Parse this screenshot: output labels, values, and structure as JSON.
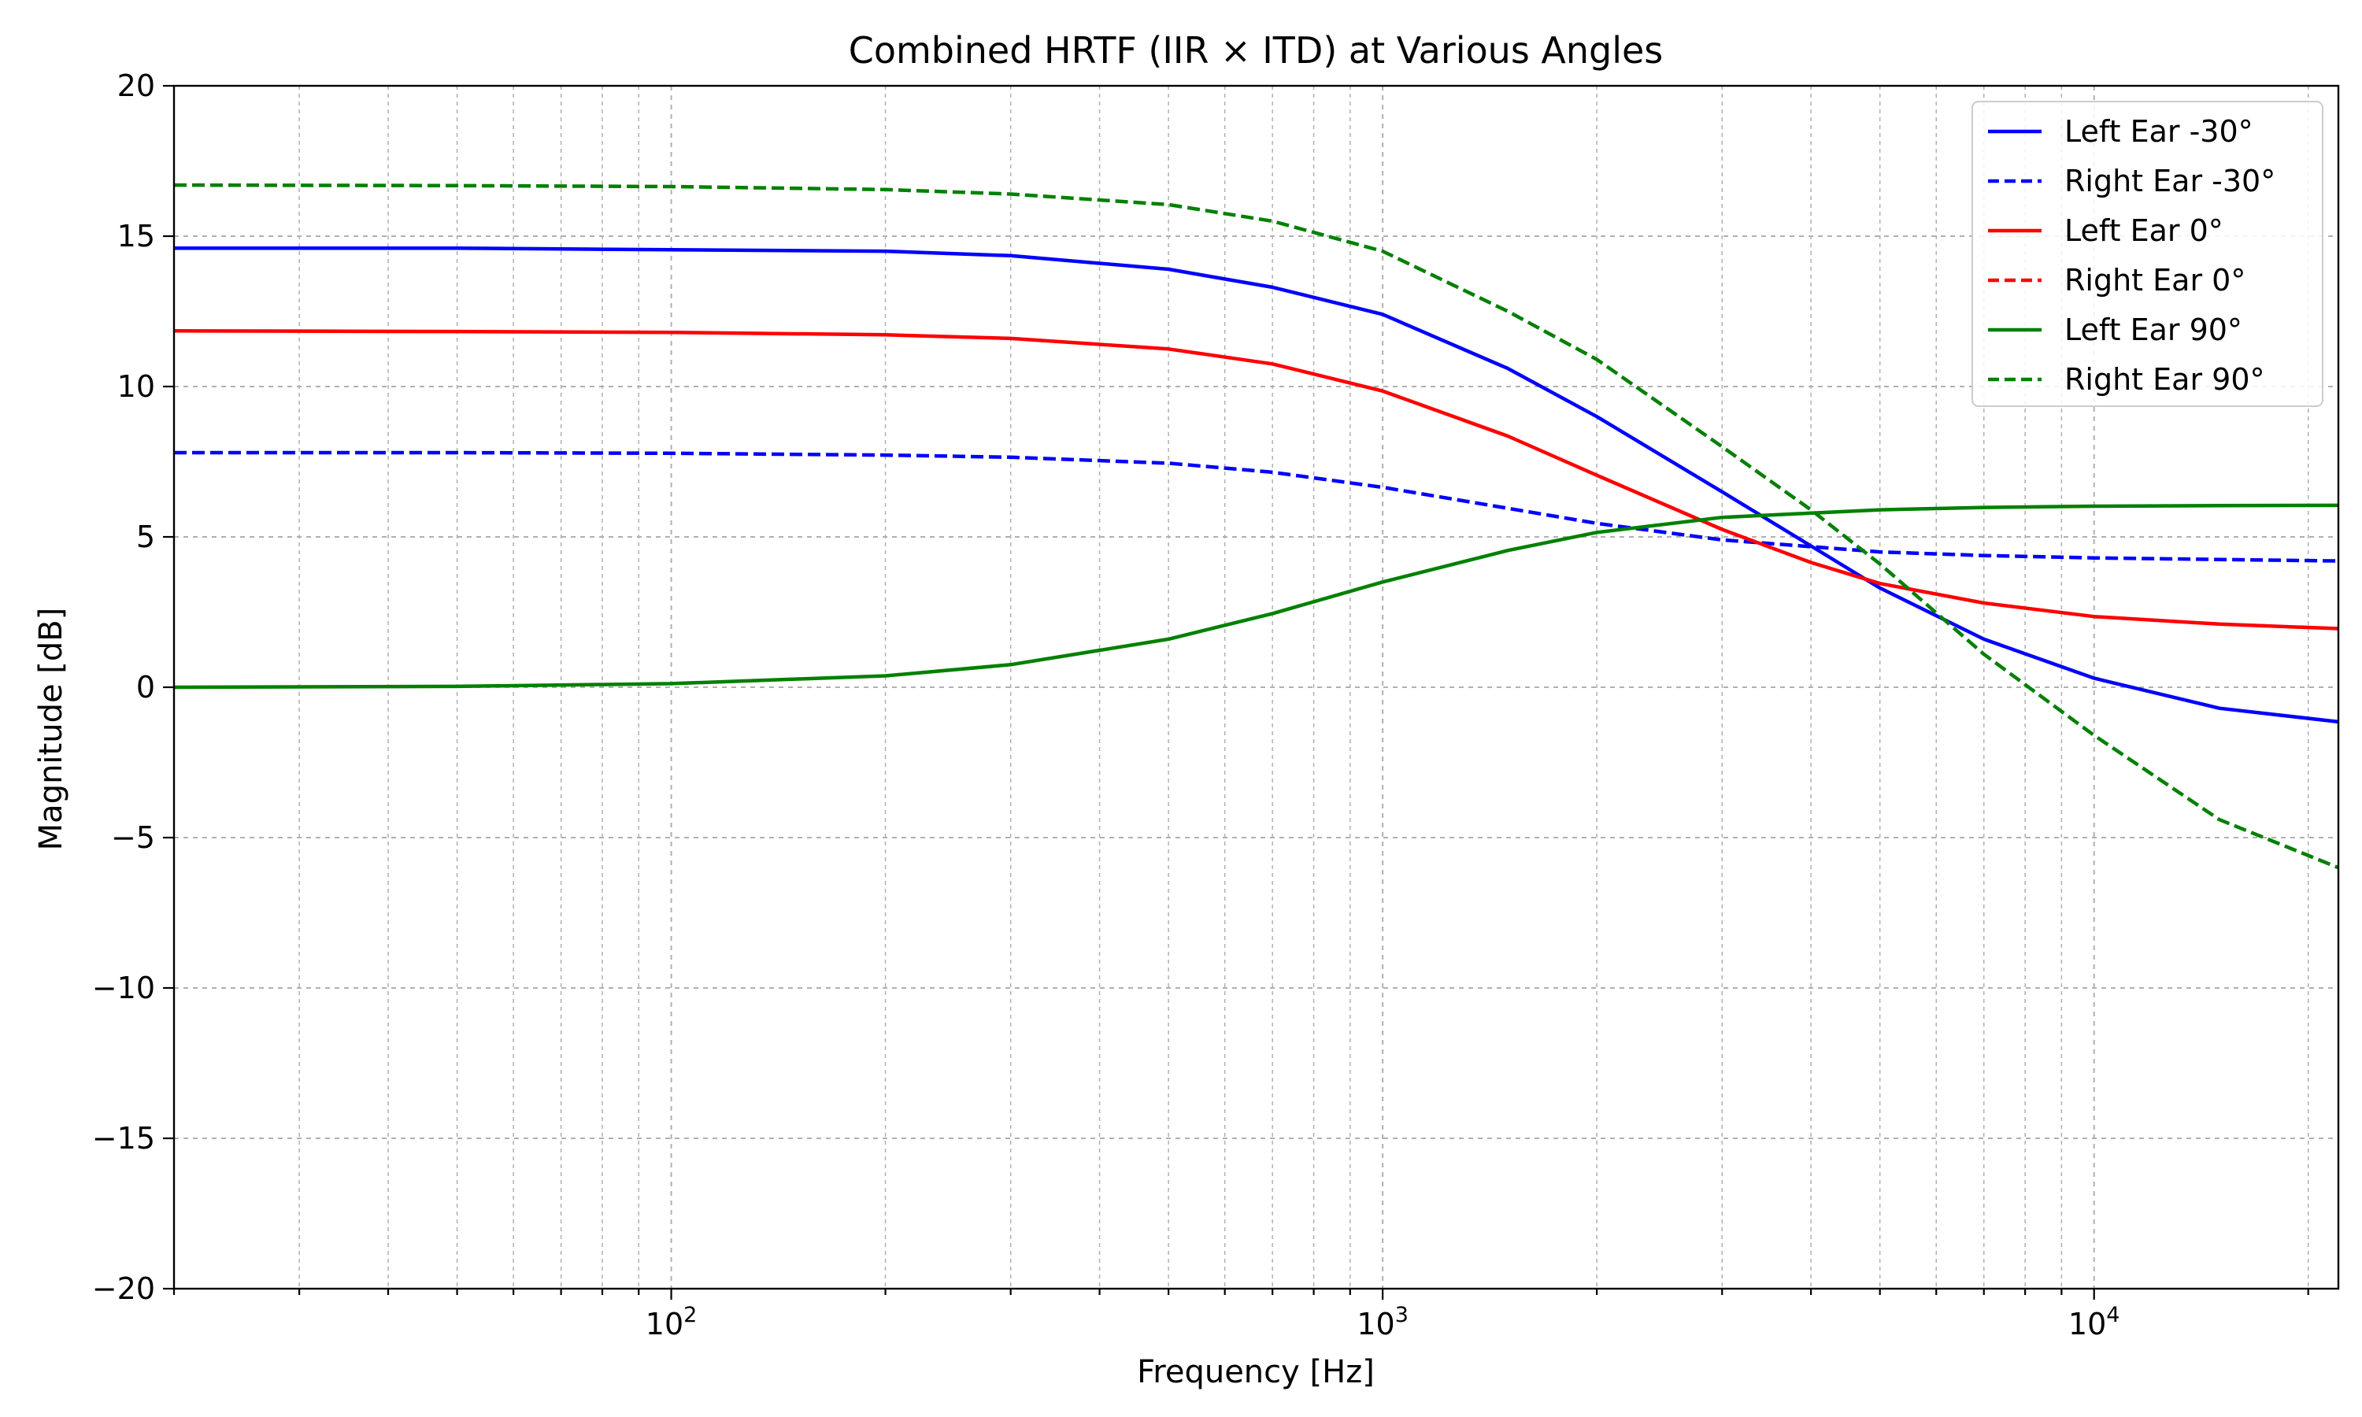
{
  "chart_data": {
    "type": "line",
    "title": "Combined HRTF (IIR × ITD) at Various Angles",
    "xlabel": "Frequency [Hz]",
    "ylabel": "Magnitude [dB]",
    "xscale": "log",
    "xlim": [
      20,
      22050
    ],
    "ylim": [
      -20,
      20
    ],
    "yticks": [
      -20,
      -15,
      -10,
      -5,
      0,
      5,
      10,
      15,
      20
    ],
    "ytick_labels": [
      "−20",
      "−15",
      "−10",
      "−5",
      "0",
      "5",
      "10",
      "15",
      "20"
    ],
    "xticks": [
      100,
      1000,
      10000
    ],
    "xtick_labels": [
      {
        "base": "10",
        "exp": "2"
      },
      {
        "base": "10",
        "exp": "3"
      },
      {
        "base": "10",
        "exp": "4"
      }
    ],
    "grid": true,
    "legend_position": "top-right",
    "series": [
      {
        "name": "Left Ear -30°",
        "color": "#0000ff",
        "dash": "solid",
        "x": [
          20,
          50,
          100,
          200,
          300,
          500,
          700,
          1000,
          1500,
          2000,
          3000,
          4000,
          5000,
          7000,
          10000,
          15000,
          22050
        ],
        "y": [
          14.6,
          14.6,
          14.55,
          14.5,
          14.35,
          13.9,
          13.3,
          12.4,
          10.6,
          9.0,
          6.5,
          4.7,
          3.3,
          1.6,
          0.3,
          -0.7,
          -1.15
        ]
      },
      {
        "name": "Right Ear -30°",
        "color": "#0000ff",
        "dash": "dashed",
        "x": [
          20,
          50,
          100,
          200,
          300,
          500,
          700,
          1000,
          1500,
          2000,
          3000,
          5000,
          7000,
          10000,
          15000,
          22050
        ],
        "y": [
          7.8,
          7.8,
          7.78,
          7.72,
          7.65,
          7.45,
          7.15,
          6.65,
          5.95,
          5.45,
          4.9,
          4.5,
          4.38,
          4.3,
          4.25,
          4.2
        ]
      },
      {
        "name": "Left Ear 0°",
        "color": "#ff0000",
        "dash": "solid",
        "x": [
          20,
          50,
          100,
          200,
          300,
          500,
          700,
          1000,
          1500,
          2000,
          3000,
          4000,
          5000,
          7000,
          10000,
          15000,
          22050
        ],
        "y": [
          11.85,
          11.83,
          11.8,
          11.72,
          11.6,
          11.25,
          10.75,
          9.85,
          8.35,
          7.05,
          5.25,
          4.15,
          3.45,
          2.8,
          2.35,
          2.1,
          1.95
        ]
      },
      {
        "name": "Right Ear 0°",
        "color": "#ff0000",
        "dash": "dashed",
        "x": [
          20,
          22050
        ],
        "y": [
          null,
          null
        ]
      },
      {
        "name": "Left Ear 90°",
        "color": "#008000",
        "dash": "solid",
        "x": [
          20,
          50,
          100,
          200,
          300,
          500,
          700,
          1000,
          1500,
          2000,
          3000,
          5000,
          7000,
          10000,
          15000,
          22050
        ],
        "y": [
          0.0,
          0.03,
          0.12,
          0.38,
          0.75,
          1.6,
          2.45,
          3.5,
          4.55,
          5.15,
          5.65,
          5.9,
          5.98,
          6.02,
          6.04,
          6.05
        ]
      },
      {
        "name": "Right Ear 90°",
        "color": "#008000",
        "dash": "dashed",
        "x": [
          20,
          50,
          100,
          200,
          300,
          500,
          700,
          1000,
          1500,
          2000,
          3000,
          4000,
          5000,
          7000,
          10000,
          15000,
          22050
        ],
        "y": [
          16.7,
          16.68,
          16.65,
          16.55,
          16.4,
          16.05,
          15.5,
          14.5,
          12.5,
          10.9,
          8.0,
          5.9,
          4.1,
          1.1,
          -1.6,
          -4.4,
          -6.0
        ]
      }
    ]
  }
}
